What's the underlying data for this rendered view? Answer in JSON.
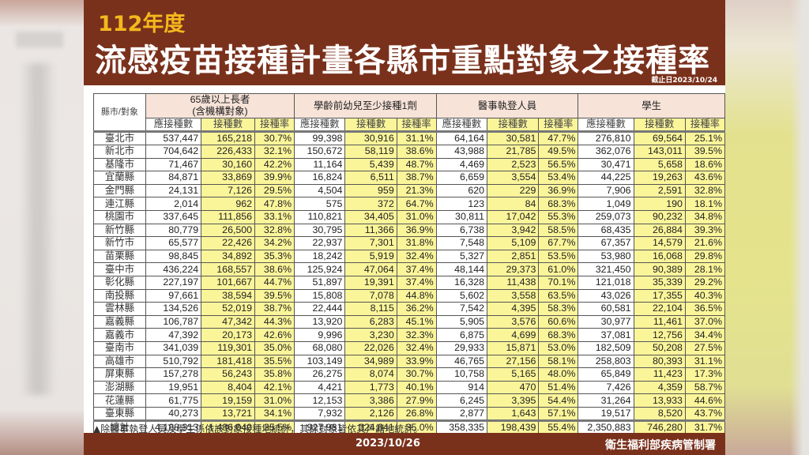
{
  "header": {
    "year": "112年度",
    "title": "流感疫苗接種計畫各縣市重點對象之接種率",
    "cutoff": "截止日2023/10/24"
  },
  "table": {
    "corner": "縣市/對象",
    "groups": [
      {
        "label": "65歲以上長者\n(含機構對象)",
        "line1": "65歲以上長者",
        "line2": "(含機構對象)"
      },
      {
        "label": "學齡前幼兒至少接種1劑"
      },
      {
        "label": "醫事執登人員"
      },
      {
        "label": "學生"
      }
    ],
    "subheaders": [
      "應接種數",
      "接種數",
      "接種率"
    ],
    "rows": [
      {
        "name": "臺北市",
        "v": [
          "537,447",
          "165,218",
          "30.7%",
          "99,398",
          "30,916",
          "31.1%",
          "64,164",
          "30,581",
          "47.7%",
          "276,810",
          "69,564",
          "25.1%"
        ]
      },
      {
        "name": "新北市",
        "v": [
          "704,642",
          "226,433",
          "32.1%",
          "150,672",
          "58,119",
          "38.6%",
          "43,988",
          "21,785",
          "49.5%",
          "362,076",
          "143,011",
          "39.5%"
        ]
      },
      {
        "name": "基隆市",
        "v": [
          "71,467",
          "30,160",
          "42.2%",
          "11,164",
          "5,439",
          "48.7%",
          "4,469",
          "2,523",
          "56.5%",
          "30,471",
          "5,658",
          "18.6%"
        ]
      },
      {
        "name": "宜蘭縣",
        "v": [
          "84,871",
          "33,869",
          "39.9%",
          "16,824",
          "6,511",
          "38.7%",
          "6,659",
          "3,554",
          "53.4%",
          "44,225",
          "19,263",
          "43.6%"
        ]
      },
      {
        "name": "金門縣",
        "v": [
          "24,131",
          "7,126",
          "29.5%",
          "4,504",
          "959",
          "21.3%",
          "620",
          "229",
          "36.9%",
          "7,906",
          "2,591",
          "32.8%"
        ]
      },
      {
        "name": "連江縣",
        "v": [
          "2,014",
          "962",
          "47.8%",
          "575",
          "372",
          "64.7%",
          "123",
          "84",
          "68.3%",
          "1,049",
          "190",
          "18.1%"
        ]
      },
      {
        "name": "桃園市",
        "v": [
          "337,645",
          "111,856",
          "33.1%",
          "110,821",
          "34,405",
          "31.0%",
          "30,811",
          "17,042",
          "55.3%",
          "259,073",
          "90,232",
          "34.8%"
        ]
      },
      {
        "name": "新竹縣",
        "v": [
          "80,779",
          "26,500",
          "32.8%",
          "30,795",
          "11,366",
          "36.9%",
          "6,738",
          "3,942",
          "58.5%",
          "68,435",
          "26,884",
          "39.3%"
        ]
      },
      {
        "name": "新竹市",
        "v": [
          "65,577",
          "22,426",
          "34.2%",
          "22,937",
          "7,301",
          "31.8%",
          "7,548",
          "5,109",
          "67.7%",
          "67,357",
          "14,579",
          "21.6%"
        ]
      },
      {
        "name": "苗栗縣",
        "v": [
          "98,845",
          "34,892",
          "35.3%",
          "18,242",
          "5,919",
          "32.4%",
          "5,327",
          "2,851",
          "53.5%",
          "53,980",
          "16,068",
          "29.8%"
        ]
      },
      {
        "name": "臺中市",
        "v": [
          "436,224",
          "168,557",
          "38.6%",
          "125,924",
          "47,064",
          "37.4%",
          "48,144",
          "29,373",
          "61.0%",
          "321,450",
          "90,389",
          "28.1%"
        ]
      },
      {
        "name": "彰化縣",
        "v": [
          "227,197",
          "101,667",
          "44.7%",
          "51,897",
          "19,391",
          "37.4%",
          "16,328",
          "11,438",
          "70.1%",
          "121,018",
          "35,339",
          "29.2%"
        ]
      },
      {
        "name": "南投縣",
        "v": [
          "97,661",
          "38,594",
          "39.5%",
          "15,808",
          "7,078",
          "44.8%",
          "5,602",
          "3,558",
          "63.5%",
          "43,026",
          "17,355",
          "40.3%"
        ]
      },
      {
        "name": "雲林縣",
        "v": [
          "134,526",
          "52,019",
          "38.7%",
          "22,444",
          "8,115",
          "36.2%",
          "7,542",
          "4,395",
          "58.3%",
          "60,581",
          "22,104",
          "36.5%"
        ]
      },
      {
        "name": "嘉義縣",
        "v": [
          "106,787",
          "47,342",
          "44.3%",
          "13,920",
          "6,283",
          "45.1%",
          "5,905",
          "3,576",
          "60.6%",
          "30,977",
          "11,461",
          "37.0%"
        ]
      },
      {
        "name": "嘉義市",
        "v": [
          "47,392",
          "20,173",
          "42.6%",
          "9,996",
          "3,230",
          "32.3%",
          "6,875",
          "4,699",
          "68.3%",
          "37,081",
          "12,756",
          "34.4%"
        ]
      },
      {
        "name": "臺南市",
        "v": [
          "341,039",
          "119,301",
          "35.0%",
          "68,080",
          "22,026",
          "32.4%",
          "29,933",
          "15,871",
          "53.0%",
          "182,509",
          "50,208",
          "27.5%"
        ]
      },
      {
        "name": "高雄市",
        "v": [
          "510,792",
          "181,418",
          "35.5%",
          "103,149",
          "34,989",
          "33.9%",
          "46,765",
          "27,156",
          "58.1%",
          "258,803",
          "80,393",
          "31.1%"
        ]
      },
      {
        "name": "屏東縣",
        "v": [
          "157,278",
          "56,243",
          "35.8%",
          "26,275",
          "8,074",
          "30.7%",
          "10,758",
          "5,165",
          "48.0%",
          "65,849",
          "11,423",
          "17.3%"
        ]
      },
      {
        "name": "澎湖縣",
        "v": [
          "19,951",
          "8,404",
          "42.1%",
          "4,421",
          "1,773",
          "40.1%",
          "914",
          "470",
          "51.4%",
          "7,426",
          "4,359",
          "58.7%"
        ]
      },
      {
        "name": "花蓮縣",
        "v": [
          "61,775",
          "19,159",
          "31.0%",
          "12,153",
          "3,386",
          "27.9%",
          "6,245",
          "3,395",
          "54.4%",
          "31,264",
          "13,933",
          "44.6%"
        ]
      },
      {
        "name": "臺東縣",
        "v": [
          "40,273",
          "13,721",
          "34.1%",
          "7,932",
          "2,126",
          "26.8%",
          "2,877",
          "1,643",
          "57.1%",
          "19,517",
          "8,520",
          "43.7%"
        ]
      }
    ],
    "total": {
      "name": "總計",
      "v": [
        "4,188,313",
        "1,486,040",
        "35.5%",
        "927,931",
        "324,841",
        "35.0%",
        "358,335",
        "198,439",
        "55.4%",
        "2,350,883",
        "746,280",
        "31.7%"
      ]
    }
  },
  "note": "▲除醫事執登人員及學生係依該對象接種地統計，其餘對象皆依其戶籍地統計。",
  "footer": {
    "date": "2023/10/26",
    "agency": "衛生福利部疾病管制署"
  },
  "colors": {
    "banner": "#7a311c",
    "year_text": "#f4b81e",
    "group_header_bg": "#f7e3d8",
    "highlight_yellow": "#fbf59a"
  }
}
